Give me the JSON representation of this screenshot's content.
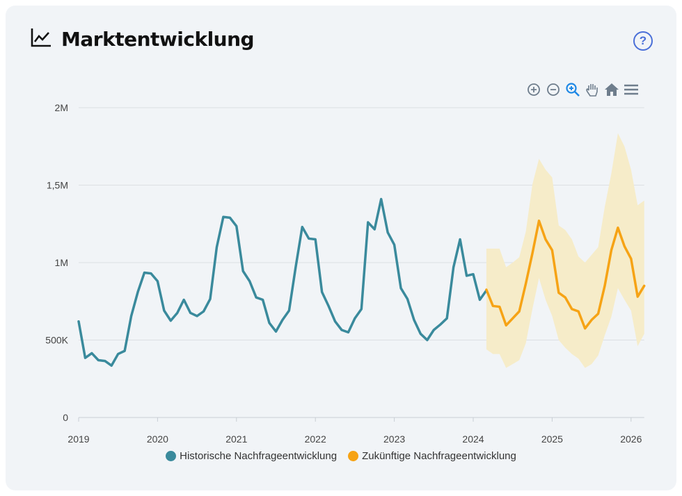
{
  "header": {
    "title": "Marktentwicklung",
    "icon": "line-chart-icon",
    "help_icon": "help-circle-icon",
    "help_label": "?"
  },
  "toolbar": {
    "tools": [
      "zoom-in-icon",
      "zoom-out-icon",
      "zoom-selection-icon",
      "pan-hand-icon",
      "home-reset-icon",
      "menu-icon"
    ]
  },
  "colors": {
    "historical": "#3a8a9c",
    "forecast": "#f6a315",
    "band": "#f6ecc9",
    "grid": "#dcdfe3"
  },
  "chart_data": {
    "type": "line",
    "ylim": [
      0,
      2000000
    ],
    "xlim": [
      "2019-01",
      "2026-03"
    ],
    "grid": true,
    "legend_position": "bottom",
    "y_ticks": [
      {
        "v": 0,
        "label": "0"
      },
      {
        "v": 500000,
        "label": "500K"
      },
      {
        "v": 1000000,
        "label": "1M"
      },
      {
        "v": 1500000,
        "label": "1,5M"
      },
      {
        "v": 2000000,
        "label": "2M"
      }
    ],
    "x_ticks": [
      "2019",
      "2020",
      "2021",
      "2022",
      "2023",
      "2024",
      "2025",
      "2026"
    ],
    "series": [
      {
        "name": "Historische Nachfrageentwicklung",
        "start": "2019-01",
        "frequency": "monthly",
        "values": [
          620000,
          385000,
          415000,
          370000,
          365000,
          335000,
          410000,
          430000,
          655000,
          810000,
          935000,
          930000,
          880000,
          690000,
          625000,
          675000,
          760000,
          675000,
          655000,
          685000,
          765000,
          1100000,
          1295000,
          1290000,
          1235000,
          945000,
          880000,
          775000,
          760000,
          610000,
          555000,
          630000,
          690000,
          970000,
          1230000,
          1155000,
          1150000,
          810000,
          720000,
          620000,
          565000,
          550000,
          640000,
          700000,
          1260000,
          1215000,
          1410000,
          1195000,
          1115000,
          835000,
          765000,
          630000,
          540000,
          500000,
          565000,
          600000,
          640000,
          970000,
          1150000,
          915000,
          925000,
          760000,
          820000
        ]
      },
      {
        "name": "Zukünftige Nachfrageentwicklung",
        "start": "2024-03",
        "frequency": "monthly",
        "values": [
          825000,
          720000,
          715000,
          595000,
          640000,
          685000,
          865000,
          1060000,
          1270000,
          1150000,
          1080000,
          805000,
          775000,
          700000,
          685000,
          575000,
          630000,
          670000,
          850000,
          1080000,
          1225000,
          1105000,
          1025000,
          780000,
          850000
        ],
        "upper": [
          1090000,
          1090000,
          1090000,
          970000,
          1000000,
          1035000,
          1200000,
          1505000,
          1670000,
          1600000,
          1550000,
          1240000,
          1210000,
          1150000,
          1040000,
          1000000,
          1050000,
          1100000,
          1360000,
          1575000,
          1835000,
          1750000,
          1600000,
          1370000,
          1400000
        ],
        "lower": [
          440000,
          410000,
          410000,
          320000,
          345000,
          370000,
          480000,
          700000,
          900000,
          760000,
          655000,
          500000,
          450000,
          410000,
          380000,
          320000,
          345000,
          400000,
          530000,
          650000,
          835000,
          760000,
          690000,
          460000,
          540000
        ]
      }
    ]
  }
}
